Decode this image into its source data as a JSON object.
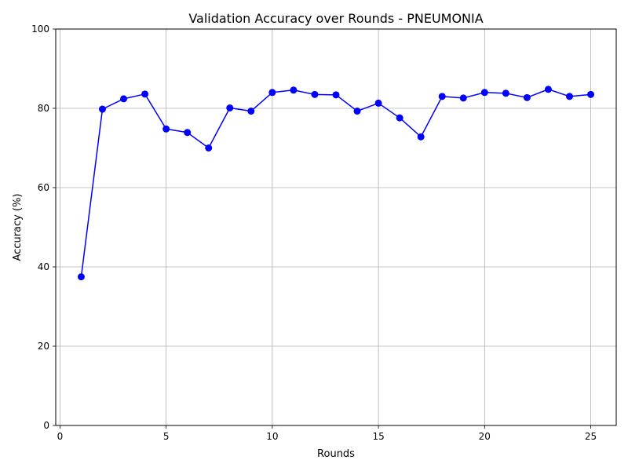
{
  "chart_data": {
    "type": "line",
    "title": "Validation Accuracy over Rounds - PNEUMONIA",
    "xlabel": "Rounds",
    "ylabel": "Accuracy (%)",
    "xlim": [
      -0.2,
      26.2
    ],
    "ylim": [
      0,
      100
    ],
    "xticks": [
      0,
      5,
      10,
      15,
      20,
      25
    ],
    "yticks": [
      0,
      20,
      40,
      60,
      80,
      100
    ],
    "grid": true,
    "series": [
      {
        "color": "#0000ff",
        "marker": "circle",
        "x": [
          1,
          2,
          3,
          4,
          5,
          6,
          7,
          8,
          9,
          10,
          11,
          12,
          13,
          14,
          15,
          16,
          17,
          18,
          19,
          20,
          21,
          22,
          23,
          24,
          25
        ],
        "y": [
          37.5,
          79.8,
          82.4,
          83.6,
          74.8,
          73.9,
          70.0,
          80.1,
          79.3,
          84.0,
          84.6,
          83.5,
          83.4,
          79.3,
          81.3,
          77.6,
          72.8,
          83.0,
          82.6,
          84.0,
          83.8,
          82.7,
          84.8,
          83.0,
          83.5
        ]
      }
    ]
  }
}
